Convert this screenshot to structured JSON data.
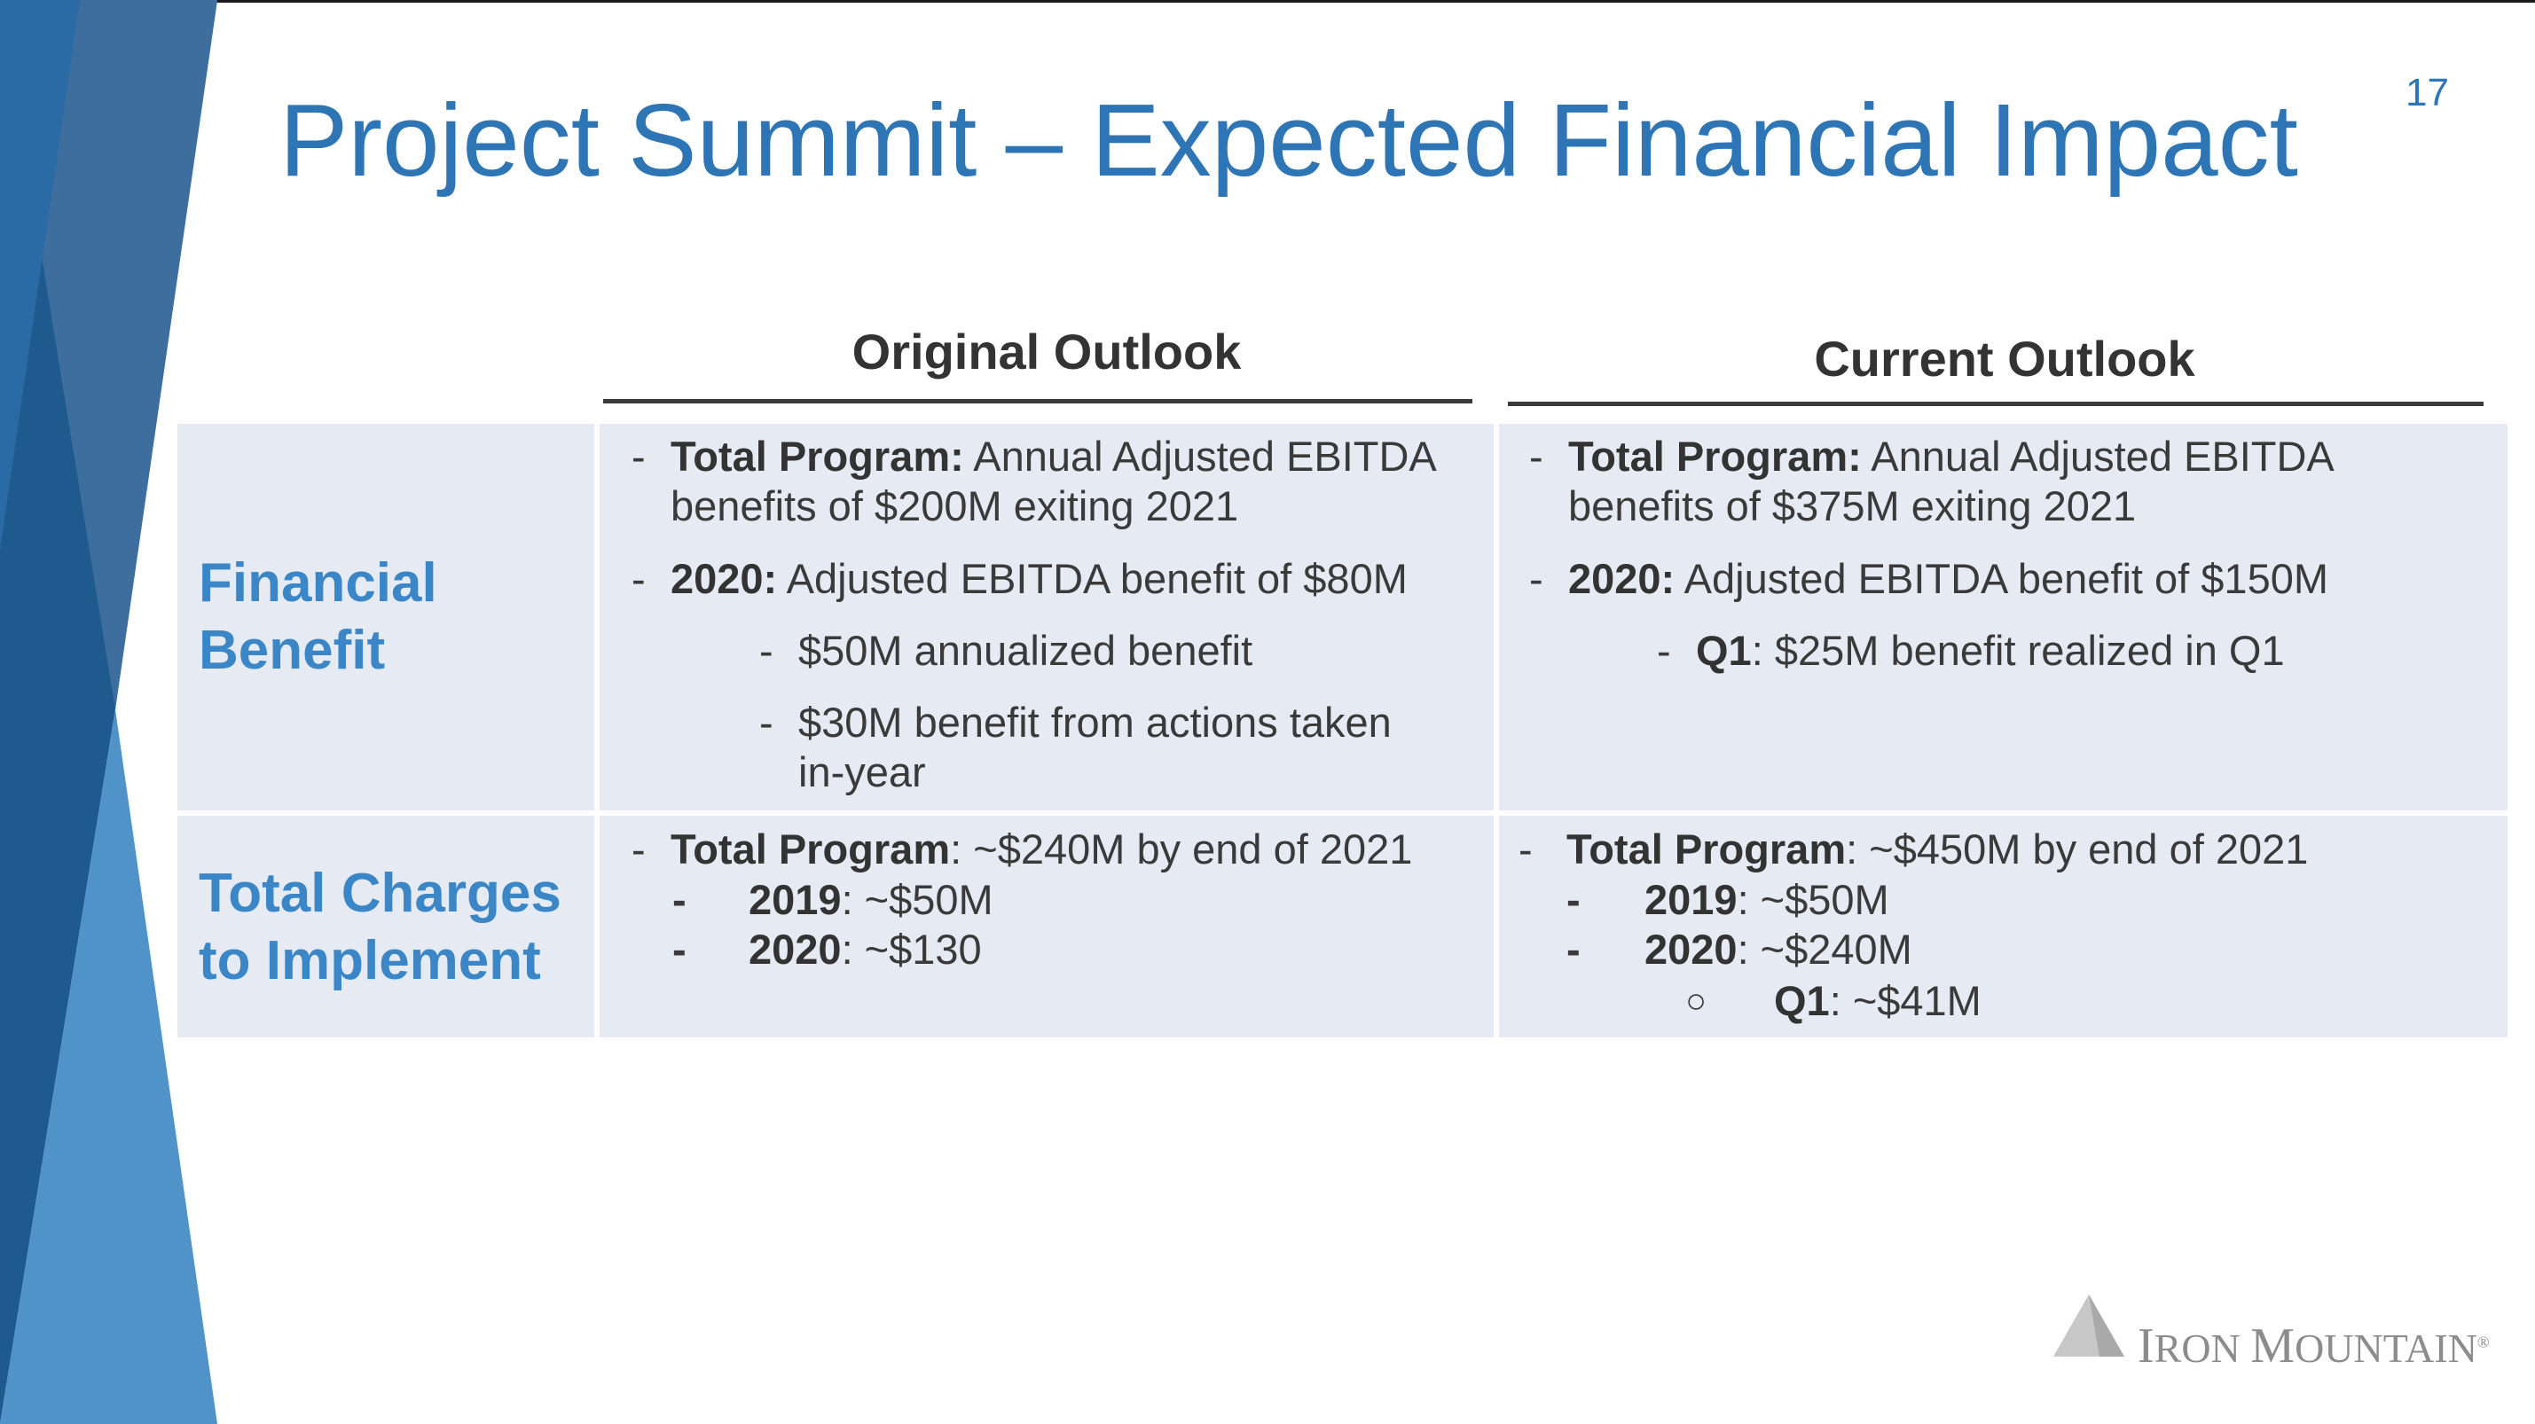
{
  "slide": {
    "title": "Project Summit – Expected Financial Impact",
    "page_number": "17",
    "colors": {
      "title": "#2e75b6",
      "row_label": "#3b86c7",
      "cell_bg": "#e6ebf3",
      "deco_dark": "#1f5a8f",
      "deco_mid": "#3d6e9e",
      "deco_light": "#4f93c9"
    }
  },
  "table": {
    "col_headers": {
      "original": "Original Outlook",
      "current": "Current Outlook"
    },
    "rows": {
      "financial_benefit": {
        "label_line1": "Financial",
        "label_line2": "Benefit",
        "original": {
          "b1_dash": "-",
          "b1_bold": "Total Program:",
          "b1_text": " Annual Adjusted EBITDA",
          "b1_text2": "benefits of $200M exiting 2021",
          "b2_dash": "-",
          "b2_bold": "2020:",
          "b2_text": " Adjusted EBITDA benefit of $80M",
          "s1_dash": "-",
          "s1_text": "$50M annualized benefit",
          "s2_dash": "-",
          "s2_text": "$30M benefit from actions taken",
          "s2_text2": "in-year"
        },
        "current": {
          "b1_dash": "-",
          "b1_bold": "Total Program:",
          "b1_text": " Annual Adjusted EBITDA",
          "b1_text2": "benefits of $375M exiting 2021",
          "b2_dash": "-",
          "b2_bold": "2020:",
          "b2_text": " Adjusted EBITDA benefit of $150M",
          "s1_dash": "-",
          "s1_bold": "Q1",
          "s1_text": ": $25M benefit realized in Q1"
        }
      },
      "total_charges": {
        "label_line1": "Total Charges",
        "label_line2": "to Implement",
        "original": {
          "b1_dash": "-",
          "b1_bold": "Total Program",
          "b1_text": ": ~$240M by end of 2021",
          "s1_dash": "-",
          "s1_bold": "2019",
          "s1_text": ": ~$50M",
          "s2_dash": "-",
          "s2_bold": "2020",
          "s2_text": ": ~$130"
        },
        "current": {
          "b1_dash": "-",
          "b1_bold": "Total Program",
          "b1_text": ": ~$450M by end of 2021",
          "s1_dash": "-",
          "s1_bold": "2019",
          "s1_text": ": ~$50M",
          "s2_dash": "-",
          "s2_bold": "2020",
          "s2_text": ": ~$240M",
          "t1_bullet": "○",
          "t1_bold": "Q1",
          "t1_text": ": ~$41M"
        }
      }
    }
  },
  "logo": {
    "icon": "mountain-logo-icon",
    "text_part1_cap": "I",
    "text_part1": "RON ",
    "text_part2_cap": "M",
    "text_part2": "OUNTAIN",
    "reg_mark": "®"
  }
}
